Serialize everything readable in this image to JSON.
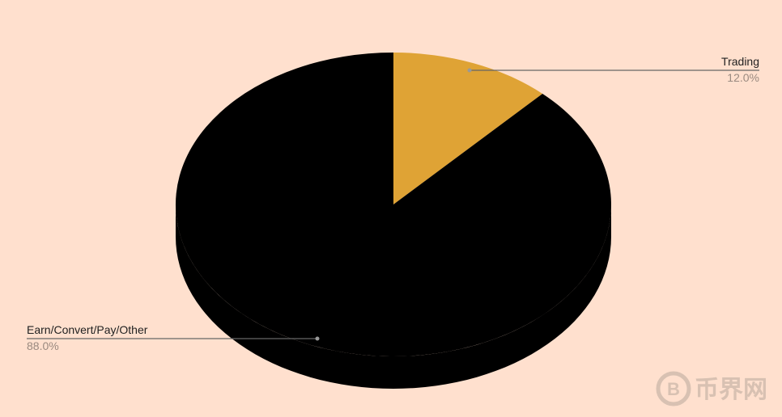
{
  "chart_data": {
    "type": "pie",
    "style": "3d",
    "categories": [
      "Trading",
      "Earn/Convert/Pay/Other"
    ],
    "values": [
      12.0,
      88.0
    ],
    "labels": [
      "12.0%",
      "88.0%"
    ],
    "colors": [
      "#DFA335",
      "#000000"
    ],
    "background": "#FFE0CE",
    "legend": "callout labels"
  },
  "watermark": {
    "text": "币界网",
    "icon": "bitcoin-logo-icon"
  }
}
